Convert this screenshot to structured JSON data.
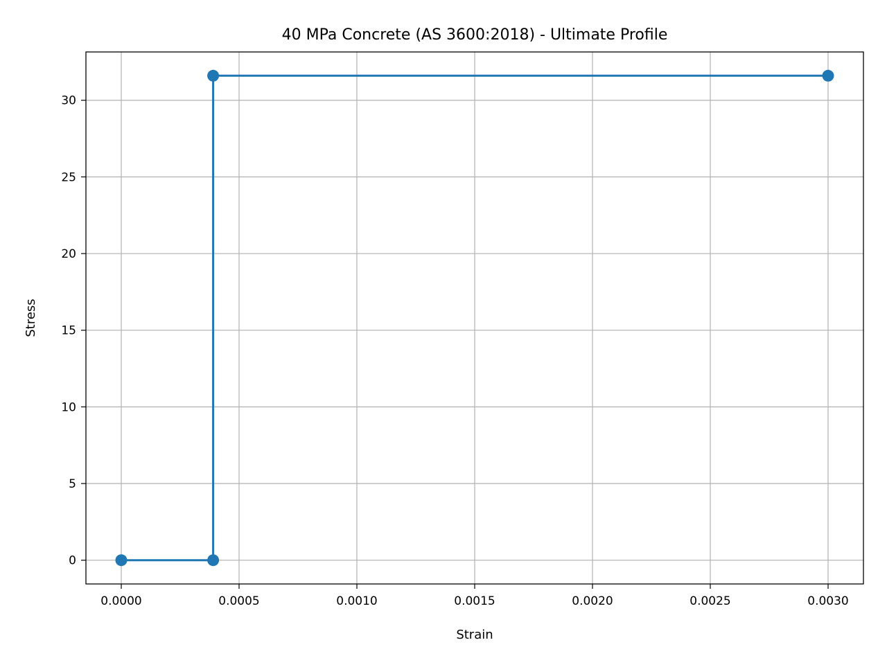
{
  "chart_data": {
    "type": "line",
    "title": "40 MPa Concrete (AS 3600:2018) - Ultimate Profile",
    "xlabel": "Strain",
    "ylabel": "Stress",
    "xlim": [
      -0.00015,
      0.00315
    ],
    "ylim": [
      -1.55,
      33.15
    ],
    "x_ticks": [
      0,
      0.0005,
      0.001,
      0.0015,
      0.002,
      0.0025,
      0.003
    ],
    "x_tick_labels": [
      "0.0000",
      "0.0005",
      "0.0010",
      "0.0015",
      "0.0020",
      "0.0025",
      "0.0030"
    ],
    "y_ticks": [
      0,
      5,
      10,
      15,
      20,
      25,
      30
    ],
    "y_tick_labels": [
      "0",
      "5",
      "10",
      "15",
      "20",
      "25",
      "30"
    ],
    "grid": true,
    "series": [
      {
        "color": "#1f77b4",
        "marker": "circle",
        "x": [
          0,
          0.00039,
          0.00039,
          0.003
        ],
        "y": [
          0,
          0,
          31.6,
          31.6
        ]
      }
    ]
  }
}
